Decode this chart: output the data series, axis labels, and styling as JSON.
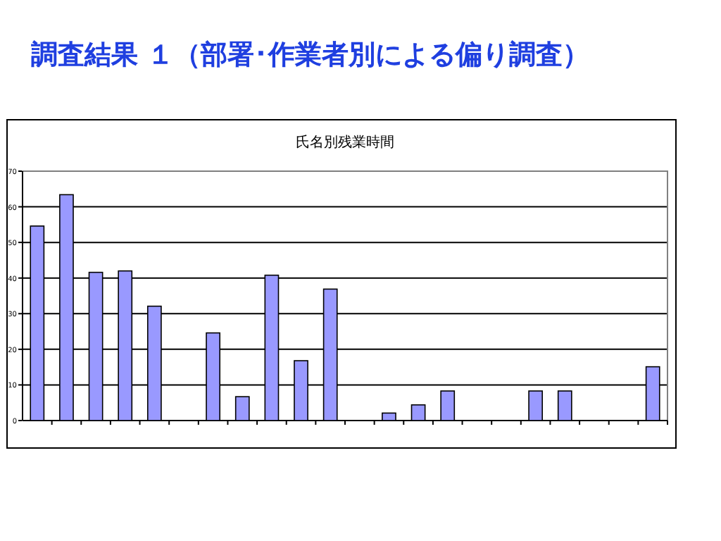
{
  "chart_data": {
    "type": "bar",
    "title": "調査結果 １（部署･作業者別による偏り調査）",
    "subtitle": "氏名別残業時間",
    "categories": [
      null,
      null,
      null,
      null,
      null,
      null,
      null,
      null,
      null,
      null,
      null,
      null,
      null,
      null,
      null,
      null,
      null,
      null,
      null,
      null,
      null,
      null
    ],
    "values": [
      54.6,
      63.4,
      41.6,
      42.0,
      32.1,
      0,
      24.6,
      6.7,
      40.8,
      16.8,
      36.9,
      0,
      2.1,
      4.4,
      8.3,
      0,
      0,
      8.3,
      8.3,
      0,
      0,
      15.1
    ],
    "color": "#9999ff",
    "ylim": [
      0,
      70
    ],
    "yticks": [
      0,
      10,
      20,
      30,
      40,
      50,
      60,
      70
    ],
    "grid": "y"
  }
}
